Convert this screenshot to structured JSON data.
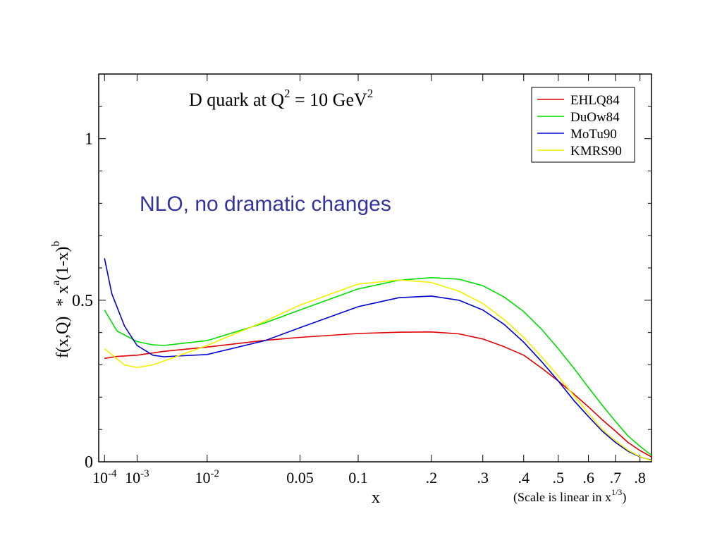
{
  "chart_data": {
    "type": "line",
    "title_main": "D quark at Q",
    "title_sup1": "2",
    "title_mid": " = 10 GeV",
    "title_sup2": "2",
    "ylabel_a": "f(x,Q)",
    "ylabel_b": "* x",
    "ylabel_sup_a": "a",
    "ylabel_c": "(1-x)",
    "ylabel_sup_b": "b",
    "xlabel": "x",
    "scale_note": "(Scale is linear in x",
    "scale_note_sup": "1/3",
    "scale_note_end": ")",
    "annotation": "NLO, no dramatic changes",
    "annotation_color": "#33339a",
    "x_scale": "cube-root",
    "ylim": [
      0,
      1.2
    ],
    "y_ticks": [
      {
        "value": 0,
        "label": "0"
      },
      {
        "value": 0.5,
        "label": "0.5"
      },
      {
        "value": 1,
        "label": "1"
      }
    ],
    "x_ticks": [
      {
        "value": 0.0001,
        "base": "10",
        "exp": "-4"
      },
      {
        "value": 0.001,
        "base": "10",
        "exp": "-3"
      },
      {
        "value": 0.01,
        "base": "10",
        "exp": "-2"
      },
      {
        "value": 0.05,
        "label": "0.05"
      },
      {
        "value": 0.1,
        "label": "0.1"
      },
      {
        "value": 0.2,
        "label": ".2"
      },
      {
        "value": 0.3,
        "label": ".3"
      },
      {
        "value": 0.4,
        "label": ".4"
      },
      {
        "value": 0.5,
        "label": ".5"
      },
      {
        "value": 0.6,
        "label": ".6"
      },
      {
        "value": 0.7,
        "label": ".7"
      },
      {
        "value": 0.8,
        "label": ".8"
      }
    ],
    "legend_position": "top-right",
    "series": [
      {
        "name": "EHLQ84",
        "color": "#e00000",
        "x": [
          0.0001,
          0.0003,
          0.001,
          0.003,
          0.01,
          0.03,
          0.05,
          0.1,
          0.15,
          0.2,
          0.25,
          0.3,
          0.35,
          0.4,
          0.45,
          0.5,
          0.55,
          0.6,
          0.65,
          0.7,
          0.75,
          0.8,
          0.85
        ],
        "y": [
          0.32,
          0.326,
          0.33,
          0.342,
          0.355,
          0.376,
          0.385,
          0.397,
          0.401,
          0.402,
          0.396,
          0.38,
          0.356,
          0.33,
          0.29,
          0.25,
          0.21,
          0.17,
          0.13,
          0.095,
          0.06,
          0.035,
          0.015
        ]
      },
      {
        "name": "DuOw84",
        "color": "#00dd00",
        "x": [
          0.0001,
          0.0003,
          0.001,
          0.002,
          0.003,
          0.01,
          0.03,
          0.05,
          0.1,
          0.15,
          0.2,
          0.25,
          0.3,
          0.35,
          0.4,
          0.45,
          0.5,
          0.55,
          0.6,
          0.65,
          0.7,
          0.75,
          0.8,
          0.85
        ],
        "y": [
          0.47,
          0.405,
          0.372,
          0.362,
          0.36,
          0.375,
          0.43,
          0.47,
          0.535,
          0.562,
          0.57,
          0.565,
          0.545,
          0.51,
          0.465,
          0.41,
          0.35,
          0.29,
          0.23,
          0.175,
          0.125,
          0.08,
          0.048,
          0.02
        ]
      },
      {
        "name": "MoTu90",
        "color": "#0000d0",
        "x": [
          0.0001,
          0.0002,
          0.0005,
          0.001,
          0.002,
          0.003,
          0.01,
          0.03,
          0.05,
          0.1,
          0.15,
          0.2,
          0.25,
          0.3,
          0.35,
          0.4,
          0.45,
          0.5,
          0.55,
          0.6,
          0.65,
          0.7,
          0.75,
          0.8,
          0.85
        ],
        "y": [
          0.63,
          0.52,
          0.42,
          0.36,
          0.33,
          0.325,
          0.332,
          0.375,
          0.415,
          0.48,
          0.508,
          0.513,
          0.5,
          0.47,
          0.425,
          0.37,
          0.31,
          0.25,
          0.19,
          0.14,
          0.095,
          0.06,
          0.033,
          0.015,
          0.005
        ]
      },
      {
        "name": "KMRS90",
        "color": "#f0f000",
        "x": [
          0.0001,
          0.0005,
          0.001,
          0.002,
          0.005,
          0.01,
          0.03,
          0.05,
          0.1,
          0.15,
          0.2,
          0.25,
          0.3,
          0.35,
          0.4,
          0.45,
          0.5,
          0.55,
          0.6,
          0.65,
          0.7,
          0.75,
          0.8,
          0.85
        ],
        "y": [
          0.35,
          0.3,
          0.292,
          0.3,
          0.33,
          0.36,
          0.435,
          0.485,
          0.55,
          0.563,
          0.555,
          0.528,
          0.49,
          0.44,
          0.385,
          0.325,
          0.265,
          0.205,
          0.15,
          0.1,
          0.065,
          0.036,
          0.016,
          0.004
        ]
      }
    ]
  }
}
